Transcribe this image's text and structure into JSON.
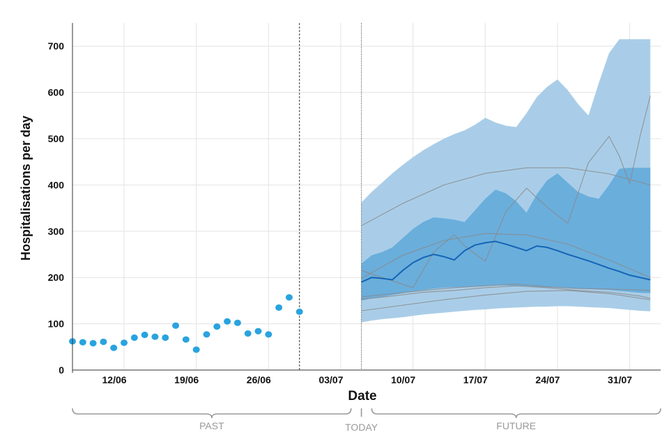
{
  "chart_data": {
    "type": "line",
    "title": "",
    "xlabel": "Date",
    "ylabel": "Hospitalisations per day",
    "ylim": [
      0,
      750
    ],
    "yticks": [
      0,
      100,
      200,
      300,
      400,
      500,
      600,
      700
    ],
    "x_range_days": [
      0,
      57
    ],
    "x_unit": "days since 07/06",
    "xticks": [
      {
        "day": 5,
        "label": "12/06"
      },
      {
        "day": 12,
        "label": "19/06"
      },
      {
        "day": 19,
        "label": "26/06"
      },
      {
        "day": 26,
        "label": "03/07"
      },
      {
        "day": 33,
        "label": "10/07"
      },
      {
        "day": 40,
        "label": "17/07"
      },
      {
        "day": 47,
        "label": "24/07"
      },
      {
        "day": 54,
        "label": "31/07"
      }
    ],
    "dashed_line_day": 22,
    "today_day": 28,
    "periods": [
      {
        "label": "PAST",
        "from_day": 0,
        "to_day": 27
      },
      {
        "label": "TODAY",
        "at_day": 28
      },
      {
        "label": "FUTURE",
        "from_day": 29,
        "to_day": 57
      }
    ],
    "colors": {
      "observed": "#29a3df",
      "band_outer": "#a9cde8",
      "band_inner": "#6aaedc",
      "median": "#1565b5",
      "scenario": "#8a8a8a",
      "grid": "#e3e3e3",
      "bracket": "#9a9a9a"
    },
    "series": [
      {
        "name": "Observed hospitalisations",
        "kind": "points",
        "x": [
          0,
          1,
          2,
          3,
          4,
          5,
          6,
          7,
          8,
          9,
          10,
          11,
          12,
          13,
          14,
          15,
          16,
          17,
          18,
          19,
          20,
          21,
          22
        ],
        "y": [
          62,
          60,
          58,
          61,
          48,
          59,
          70,
          76,
          72,
          70,
          96,
          66,
          44,
          77,
          94,
          105,
          102,
          79,
          84,
          77,
          135,
          157,
          126
        ]
      },
      {
        "name": "Outer interval",
        "kind": "band",
        "x": [
          28,
          29,
          30,
          31,
          32,
          33,
          34,
          35,
          36,
          37,
          38,
          39,
          40,
          41,
          42,
          43,
          44,
          45,
          46,
          47,
          48,
          49,
          50,
          51,
          52,
          53,
          54,
          55,
          56
        ],
        "lower": [
          103,
          107,
          110,
          112,
          114,
          117,
          120,
          122,
          124,
          126,
          128,
          130,
          131,
          133,
          134,
          135,
          136,
          137,
          137,
          138,
          138,
          137,
          136,
          135,
          134,
          132,
          130,
          128,
          127
        ],
        "upper": [
          362,
          385,
          405,
          425,
          443,
          460,
          475,
          488,
          500,
          510,
          518,
          530,
          545,
          535,
          528,
          525,
          555,
          590,
          612,
          628,
          605,
          575,
          550,
          620,
          685,
          715,
          715,
          715,
          715
        ]
      },
      {
        "name": "Inner interval",
        "kind": "band",
        "x": [
          28,
          29,
          30,
          31,
          32,
          33,
          34,
          35,
          36,
          37,
          38,
          39,
          40,
          41,
          42,
          43,
          44,
          45,
          46,
          47,
          48,
          49,
          50,
          51,
          52,
          53,
          54,
          55,
          56
        ],
        "lower": [
          150,
          155,
          158,
          162,
          166,
          170,
          173,
          176,
          178,
          179,
          180,
          181,
          182,
          183,
          183,
          182,
          181,
          180,
          179,
          178,
          177,
          176,
          175,
          174,
          173,
          171,
          169,
          167,
          166
        ],
        "upper": [
          230,
          248,
          255,
          265,
          285,
          305,
          320,
          330,
          328,
          325,
          320,
          345,
          370,
          390,
          382,
          365,
          340,
          380,
          410,
          425,
          405,
          385,
          375,
          370,
          400,
          435,
          437,
          437,
          437
        ]
      },
      {
        "name": "Median projection",
        "kind": "line",
        "x": [
          28,
          29,
          30,
          31,
          32,
          33,
          34,
          35,
          36,
          37,
          38,
          39,
          40,
          41,
          42,
          43,
          44,
          45,
          46,
          47,
          48,
          49,
          50,
          51,
          52,
          53,
          54,
          55,
          56
        ],
        "y": [
          190,
          200,
          198,
          195,
          215,
          232,
          243,
          250,
          245,
          238,
          258,
          270,
          275,
          278,
          272,
          265,
          258,
          268,
          265,
          258,
          250,
          243,
          236,
          228,
          220,
          213,
          205,
          200,
          195
        ]
      },
      {
        "name": "Scenario trend high",
        "kind": "line",
        "x": [
          28,
          32,
          36,
          40,
          44,
          48,
          52,
          56
        ],
        "y": [
          312,
          360,
          400,
          425,
          437,
          437,
          424,
          400
        ]
      },
      {
        "name": "Scenario trend mid",
        "kind": "line",
        "x": [
          28,
          32,
          36,
          40,
          44,
          48,
          52,
          56
        ],
        "y": [
          198,
          248,
          280,
          295,
          292,
          272,
          238,
          200
        ]
      },
      {
        "name": "Scenario trend low",
        "kind": "line",
        "x": [
          28,
          32,
          36,
          40,
          44,
          48,
          52,
          56
        ],
        "y": [
          128,
          140,
          152,
          162,
          170,
          172,
          165,
          152
        ]
      },
      {
        "name": "Scenario trajectory A",
        "kind": "line",
        "x": [
          28,
          30,
          33,
          35,
          37,
          38,
          40,
          42,
          44,
          46,
          48,
          50,
          52,
          53,
          54,
          55,
          56
        ],
        "y": [
          215,
          200,
          178,
          255,
          292,
          268,
          235,
          342,
          393,
          352,
          317,
          448,
          505,
          462,
          403,
          505,
          593
        ]
      },
      {
        "name": "Scenario trajectory B",
        "kind": "line",
        "x": [
          28,
          31,
          34,
          37,
          40,
          43,
          46,
          49,
          52,
          55,
          56
        ],
        "y": [
          158,
          165,
          172,
          178,
          182,
          186,
          180,
          176,
          175,
          173,
          172
        ]
      },
      {
        "name": "Scenario trajectory C",
        "kind": "line",
        "x": [
          28,
          31,
          34,
          37,
          40,
          43,
          46,
          49,
          52,
          55,
          56
        ],
        "y": [
          153,
          160,
          168,
          172,
          178,
          182,
          178,
          172,
          168,
          160,
          155
        ]
      }
    ]
  }
}
